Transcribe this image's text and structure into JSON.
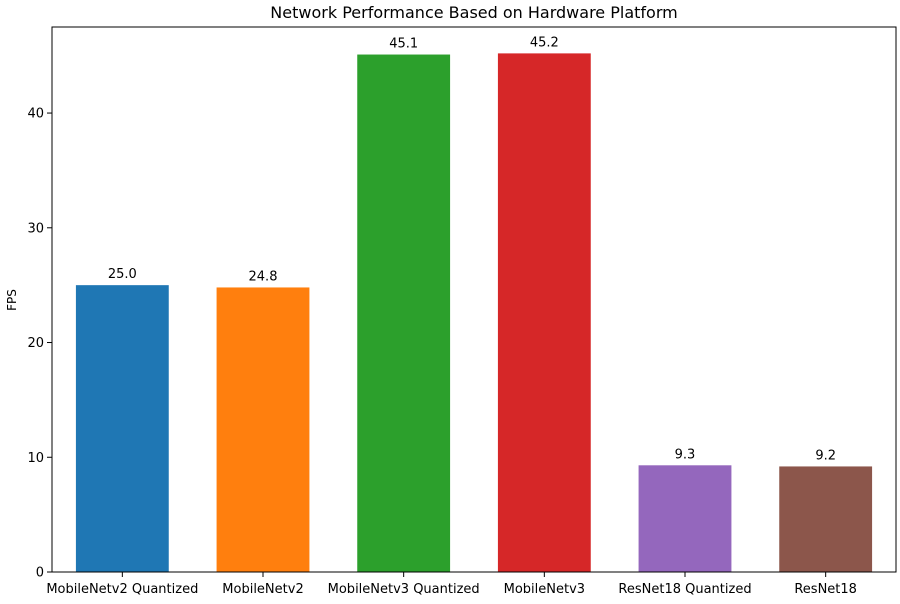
{
  "chart_data": {
    "type": "bar",
    "title": "Network Performance Based on Hardware Platform",
    "xlabel": "",
    "ylabel": "FPS",
    "categories": [
      "MobileNetv2 Quantized",
      "MobileNetv2",
      "MobileNetv3 Quantized",
      "MobileNetv3",
      "ResNet18 Quantized",
      "ResNet18"
    ],
    "values": [
      25.0,
      24.8,
      45.1,
      45.2,
      9.3,
      9.2
    ],
    "data_labels": [
      "25.0",
      "24.8",
      "45.1",
      "45.2",
      "9.3",
      "9.2"
    ],
    "colors": [
      "#1f77b4",
      "#ff7f0e",
      "#2ca02c",
      "#d62728",
      "#9467bd",
      "#8c564b"
    ],
    "ylim": [
      0,
      47.5
    ],
    "yticks": [
      0,
      10,
      20,
      30,
      40
    ],
    "ytick_labels": [
      "0",
      "10",
      "20",
      "30",
      "40"
    ],
    "grid": false,
    "legend": "none"
  }
}
